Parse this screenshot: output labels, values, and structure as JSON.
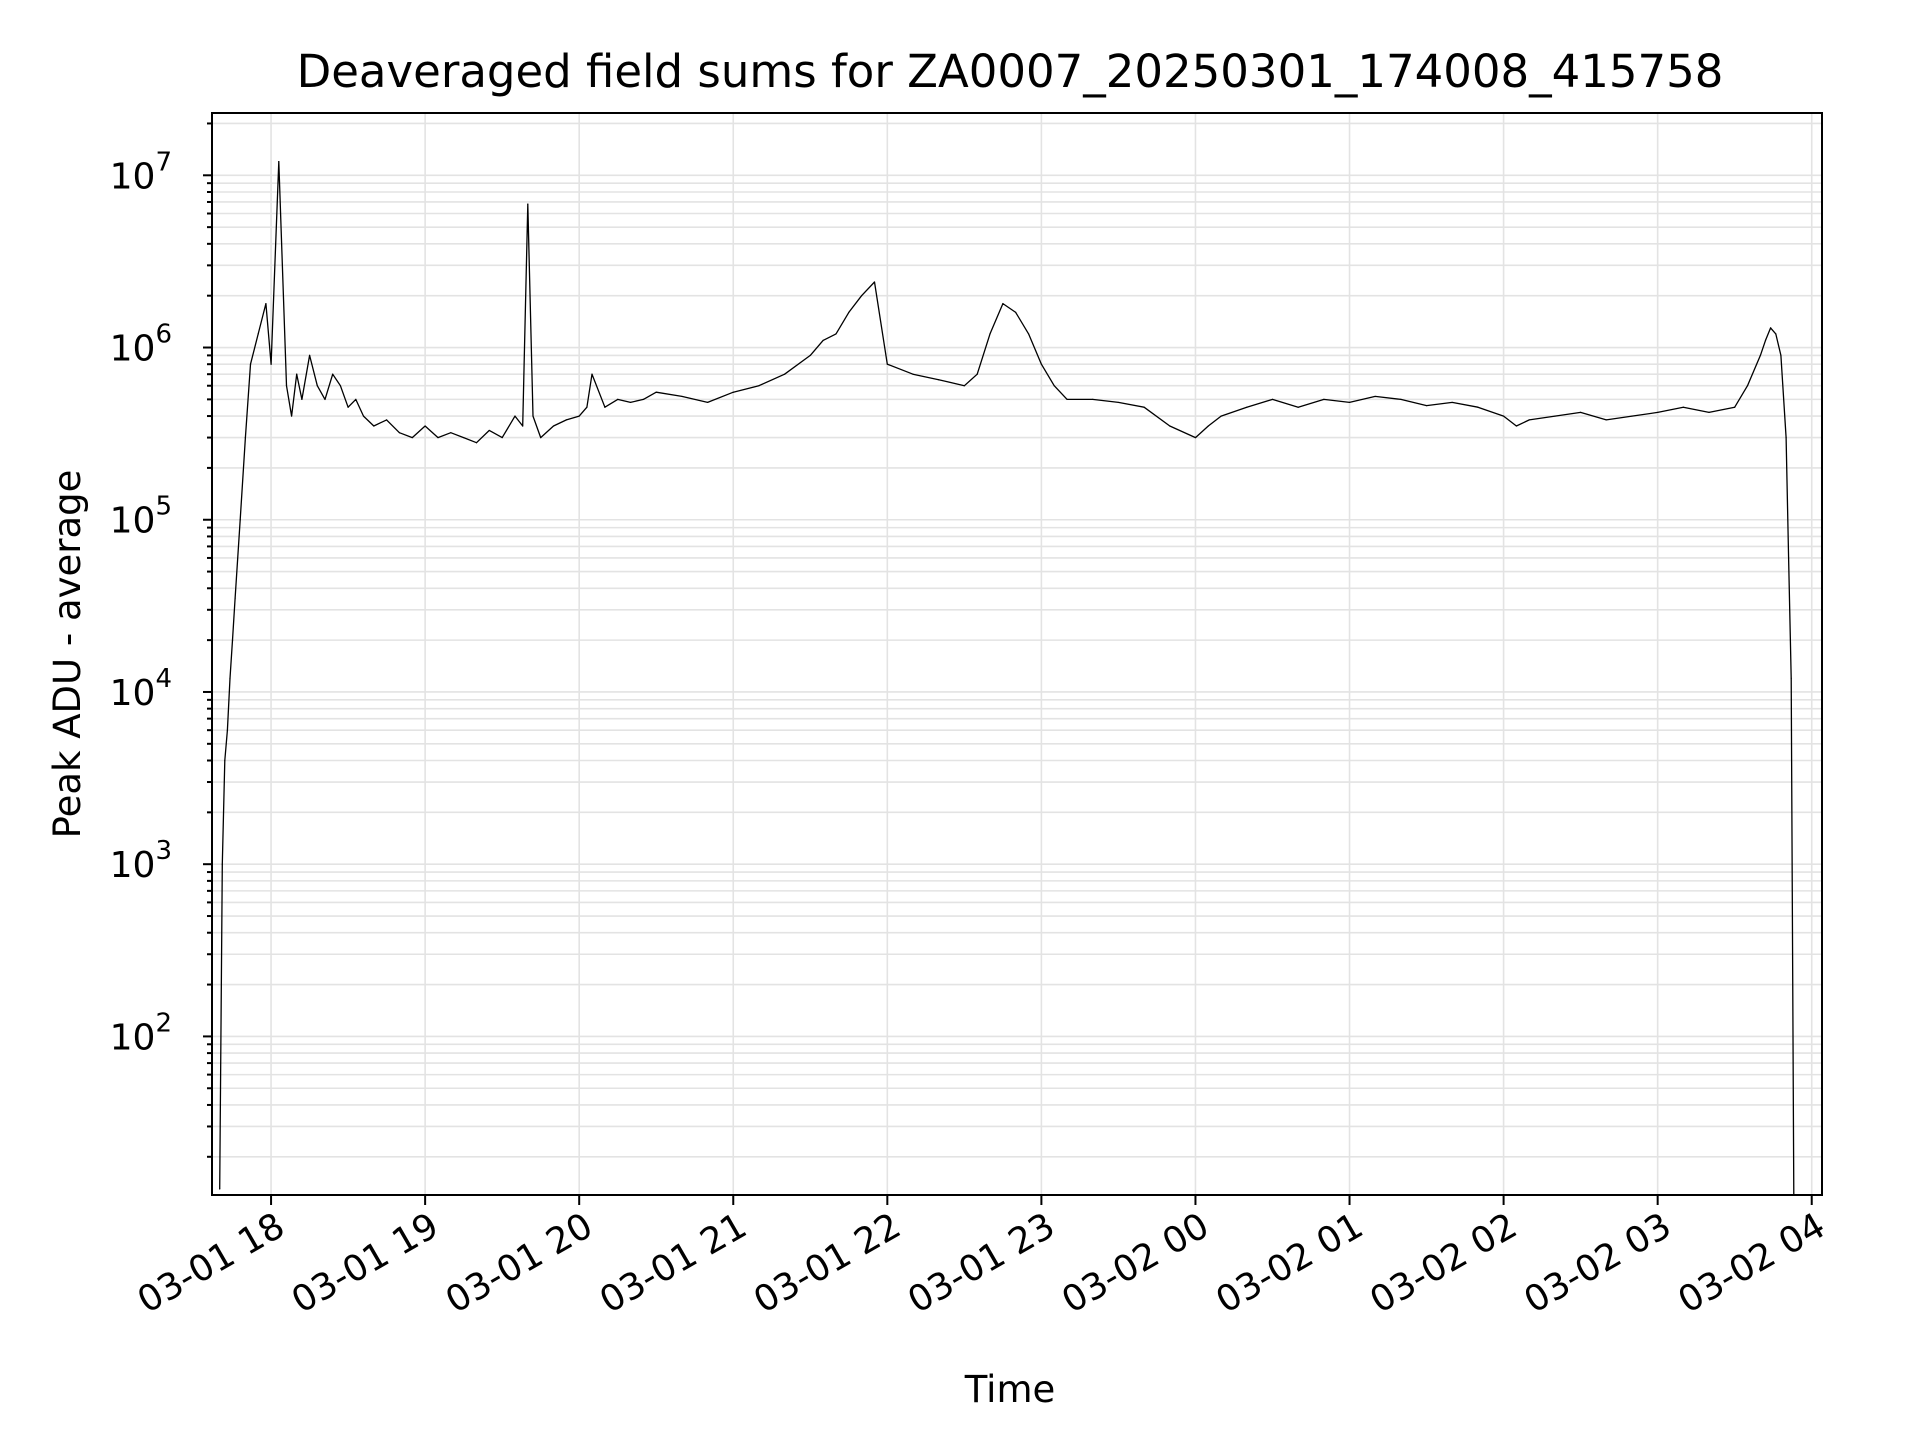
{
  "chart_data": {
    "type": "line",
    "title": "Deaveraged field sums for ZA0007_20250301_174008_415758",
    "xlabel": "Time",
    "ylabel": "Peak ADU - average",
    "x_axis": {
      "type": "datetime",
      "range": [
        "2025-03-01 17:37",
        "2025-03-02 04:04"
      ],
      "tick_labels": [
        "03-01 18",
        "03-01 19",
        "03-01 20",
        "03-01 21",
        "03-01 22",
        "03-01 23",
        "03-02 00",
        "03-02 01",
        "03-02 02",
        "03-02 03",
        "03-02 04"
      ]
    },
    "y_axis": {
      "scale": "log",
      "range": [
        12,
        23000000
      ],
      "tick_labels": [
        {
          "base": "10",
          "exp": "2"
        },
        {
          "base": "10",
          "exp": "3"
        },
        {
          "base": "10",
          "exp": "4"
        },
        {
          "base": "10",
          "exp": "5"
        },
        {
          "base": "10",
          "exp": "6"
        },
        {
          "base": "10",
          "exp": "7"
        }
      ]
    },
    "grid": true,
    "line_color": "#000000",
    "series": [
      {
        "x": [
          "2025-03-01 17:40",
          "2025-03-01 17:41",
          "2025-03-01 17:42",
          "2025-03-01 17:43",
          "2025-03-01 17:44",
          "2025-03-01 17:45",
          "2025-03-01 17:46",
          "2025-03-01 17:48",
          "2025-03-01 17:50",
          "2025-03-01 17:52",
          "2025-03-01 17:55",
          "2025-03-01 17:58",
          "2025-03-01 18:00",
          "2025-03-01 18:03",
          "2025-03-01 18:06",
          "2025-03-01 18:08",
          "2025-03-01 18:10",
          "2025-03-01 18:12",
          "2025-03-01 18:15",
          "2025-03-01 18:18",
          "2025-03-01 18:21",
          "2025-03-01 18:24",
          "2025-03-01 18:27",
          "2025-03-01 18:30",
          "2025-03-01 18:33",
          "2025-03-01 18:36",
          "2025-03-01 18:40",
          "2025-03-01 18:45",
          "2025-03-01 18:50",
          "2025-03-01 18:55",
          "2025-03-01 19:00",
          "2025-03-01 19:05",
          "2025-03-01 19:10",
          "2025-03-01 19:15",
          "2025-03-01 19:20",
          "2025-03-01 19:25",
          "2025-03-01 19:30",
          "2025-03-01 19:35",
          "2025-03-01 19:38",
          "2025-03-01 19:40",
          "2025-03-01 19:42",
          "2025-03-01 19:45",
          "2025-03-01 19:50",
          "2025-03-01 19:55",
          "2025-03-01 20:00",
          "2025-03-01 20:03",
          "2025-03-01 20:05",
          "2025-03-01 20:10",
          "2025-03-01 20:15",
          "2025-03-01 20:20",
          "2025-03-01 20:25",
          "2025-03-01 20:30",
          "2025-03-01 20:40",
          "2025-03-01 20:50",
          "2025-03-01 21:00",
          "2025-03-01 21:10",
          "2025-03-01 21:20",
          "2025-03-01 21:30",
          "2025-03-01 21:35",
          "2025-03-01 21:40",
          "2025-03-01 21:45",
          "2025-03-01 21:50",
          "2025-03-01 21:55",
          "2025-03-01 22:00",
          "2025-03-01 22:10",
          "2025-03-01 22:20",
          "2025-03-01 22:30",
          "2025-03-01 22:35",
          "2025-03-01 22:40",
          "2025-03-01 22:45",
          "2025-03-01 22:50",
          "2025-03-01 22:55",
          "2025-03-01 23:00",
          "2025-03-01 23:05",
          "2025-03-01 23:10",
          "2025-03-01 23:20",
          "2025-03-01 23:30",
          "2025-03-01 23:40",
          "2025-03-01 23:50",
          "2025-03-02 00:00",
          "2025-03-02 00:05",
          "2025-03-02 00:10",
          "2025-03-02 00:20",
          "2025-03-02 00:30",
          "2025-03-02 00:40",
          "2025-03-02 00:50",
          "2025-03-02 01:00",
          "2025-03-02 01:10",
          "2025-03-02 01:20",
          "2025-03-02 01:30",
          "2025-03-02 01:40",
          "2025-03-02 01:50",
          "2025-03-02 02:00",
          "2025-03-02 02:05",
          "2025-03-02 02:10",
          "2025-03-02 02:20",
          "2025-03-02 02:30",
          "2025-03-02 02:40",
          "2025-03-02 02:50",
          "2025-03-02 03:00",
          "2025-03-02 03:10",
          "2025-03-02 03:20",
          "2025-03-02 03:30",
          "2025-03-02 03:35",
          "2025-03-02 03:40",
          "2025-03-02 03:42",
          "2025-03-02 03:44",
          "2025-03-02 03:46",
          "2025-03-02 03:48",
          "2025-03-02 03:50",
          "2025-03-02 03:51",
          "2025-03-02 03:52",
          "2025-03-02 03:53"
        ],
        "values": [
          13,
          1000,
          4000,
          6000,
          12000,
          20000,
          35000,
          100000,
          300000,
          800000,
          1200000,
          1800000,
          800000,
          12000000,
          600000,
          400000,
          700000,
          500000,
          900000,
          600000,
          500000,
          700000,
          600000,
          450000,
          500000,
          400000,
          350000,
          380000,
          320000,
          300000,
          350000,
          300000,
          320000,
          300000,
          280000,
          330000,
          300000,
          400000,
          350000,
          6800000,
          400000,
          300000,
          350000,
          380000,
          400000,
          450000,
          700000,
          450000,
          500000,
          480000,
          500000,
          550000,
          520000,
          480000,
          550000,
          600000,
          700000,
          900000,
          1100000,
          1200000,
          1600000,
          2000000,
          2400000,
          800000,
          700000,
          650000,
          600000,
          700000,
          1200000,
          1800000,
          1600000,
          1200000,
          800000,
          600000,
          500000,
          500000,
          480000,
          450000,
          350000,
          300000,
          350000,
          400000,
          450000,
          500000,
          450000,
          500000,
          480000,
          520000,
          500000,
          460000,
          480000,
          450000,
          400000,
          350000,
          380000,
          400000,
          420000,
          380000,
          400000,
          420000,
          450000,
          420000,
          450000,
          600000,
          900000,
          1100000,
          1300000,
          1200000,
          900000,
          300000,
          60000,
          12000,
          12
        ]
      }
    ]
  }
}
